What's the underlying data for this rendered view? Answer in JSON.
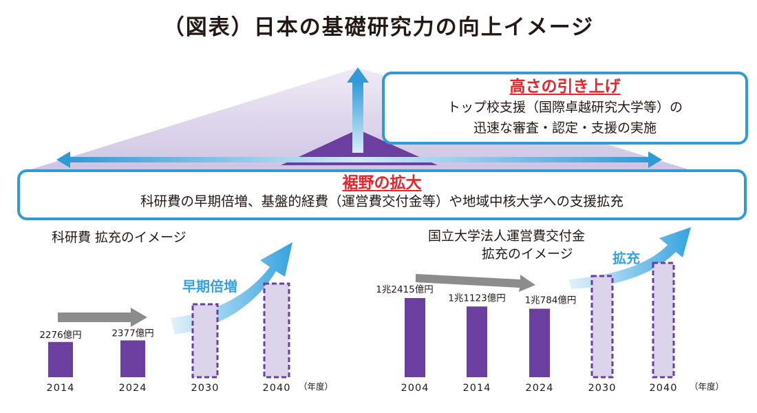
{
  "title": "（図表）日本の基礎研究力の向上イメージ",
  "box_top": {
    "heading": "高さの引き上げ",
    "line1": "トップ校支援（国際卓越研究大学等）の",
    "line2": "迅速な審査・認定・支援の実施"
  },
  "box_wide": {
    "heading": "裾野の拡大",
    "line1": "科研費の早期倍増、基盤的経費（運営費交付金等）や地域中核大学への支援拡充"
  },
  "colors": {
    "bar": "#6a3fa0",
    "bar_future_fill": "#dad3ea",
    "bar_future_border": "#6a3fa0",
    "accent_blue": "#2f9ad6",
    "heading_red": "#e6242a",
    "arrow_gray": "#8c8c8c"
  },
  "chart_data": [
    {
      "type": "bar",
      "title": "科研費 拡充のイメージ",
      "categories": [
        "2014",
        "2024",
        "2030",
        "2040"
      ],
      "values": [
        2276,
        2377,
        null,
        null
      ],
      "value_labels": [
        "2276億円",
        "2377億円",
        "",
        ""
      ],
      "projected": [
        false,
        false,
        true,
        true
      ],
      "projection_label": "早期倍増",
      "unit": "（年度）"
    },
    {
      "type": "bar",
      "title_line1": "国立大学法人運営費交付金",
      "title_line2": "拡充のイメージ",
      "categories": [
        "2004",
        "2014",
        "2024",
        "2030",
        "2040"
      ],
      "values": [
        12415,
        11123,
        10784,
        null,
        null
      ],
      "value_labels": [
        "1兆2415億円",
        "1兆1123億円",
        "1兆784億円",
        "",
        ""
      ],
      "projected": [
        false,
        false,
        false,
        true,
        true
      ],
      "projection_label": "拡充",
      "unit": "（年度）"
    }
  ]
}
